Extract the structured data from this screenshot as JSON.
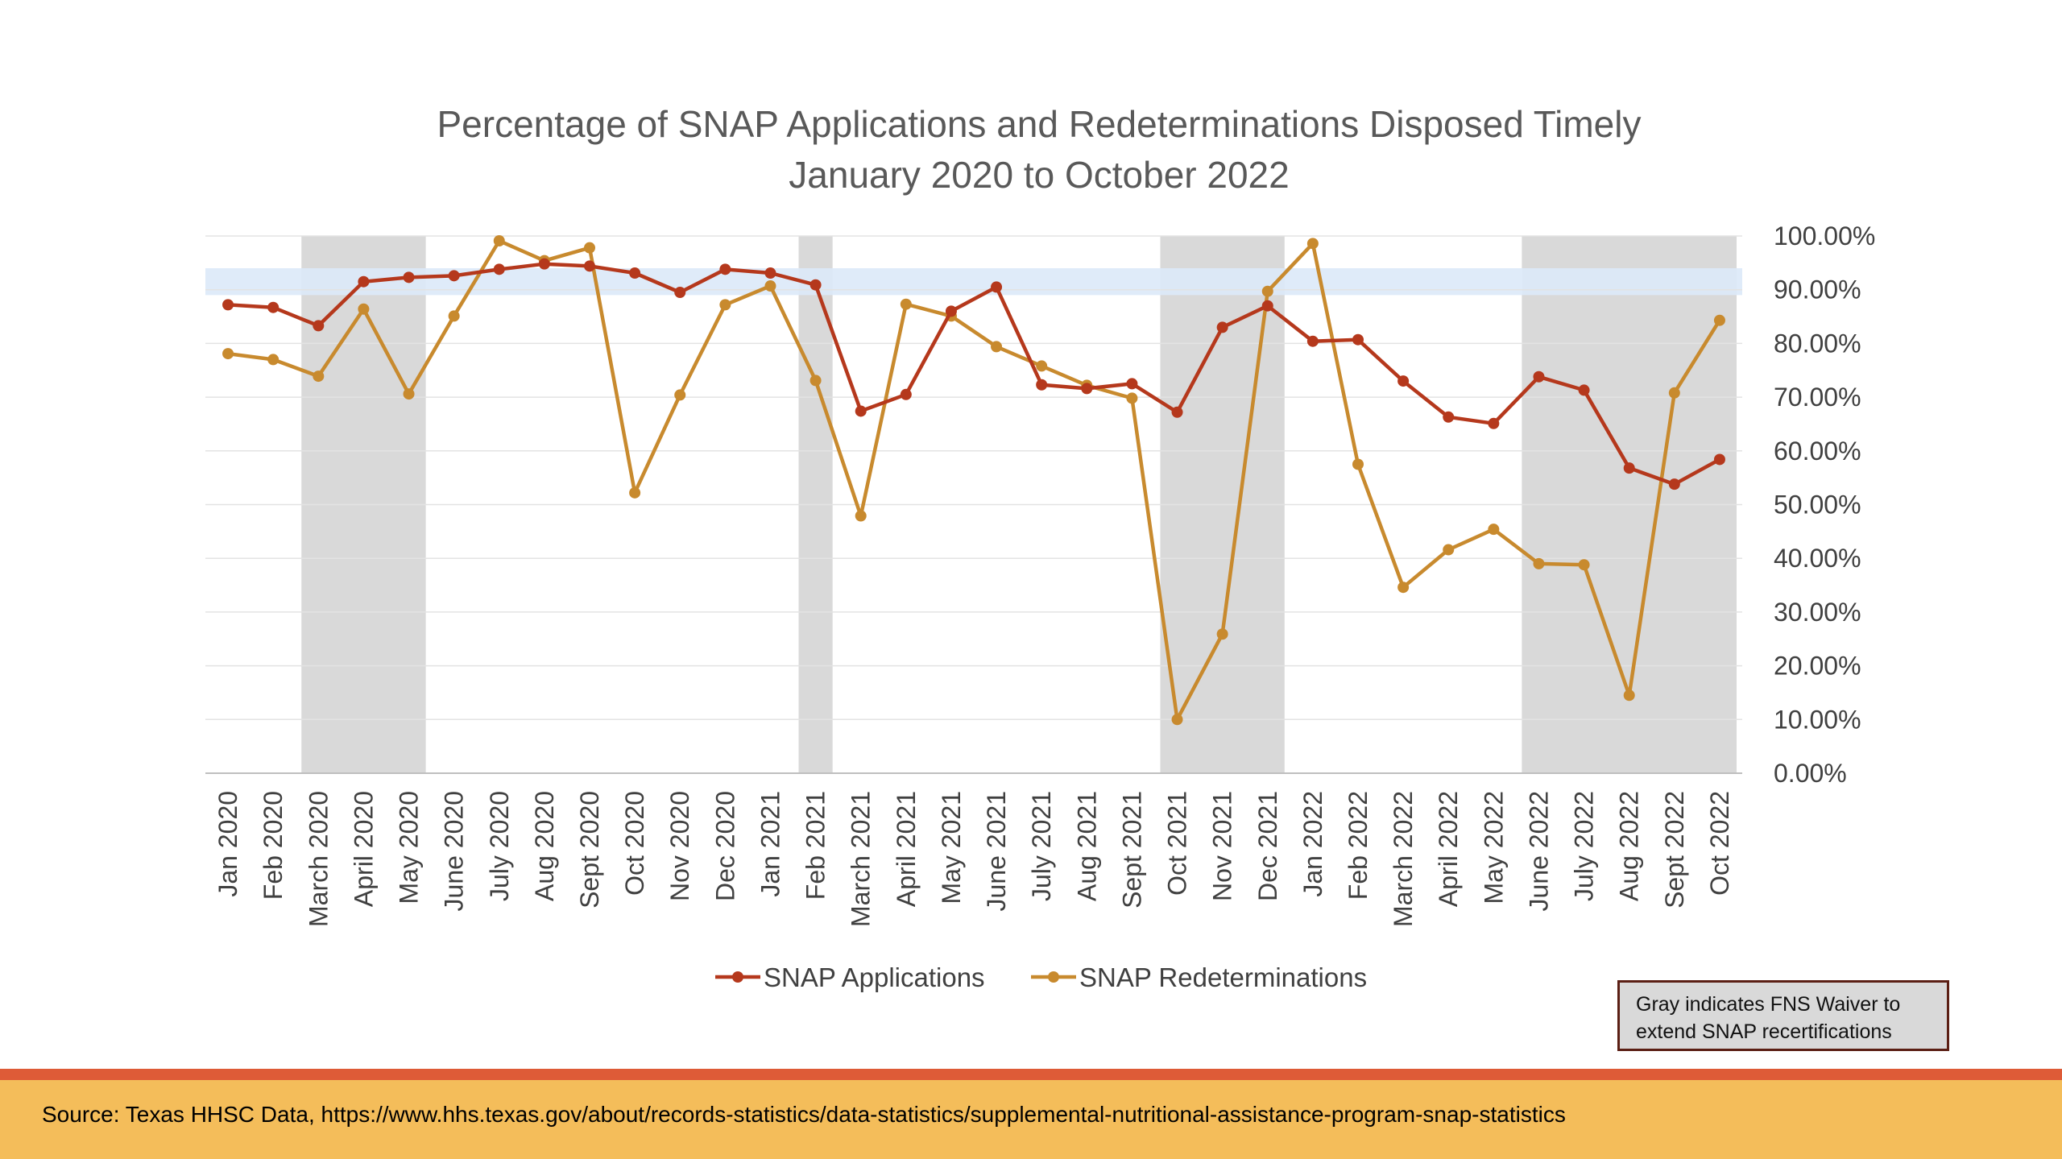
{
  "chart_data": {
    "type": "line",
    "title": "Percentage of SNAP Applications and Redeterminations Disposed Timely",
    "subtitle": "January 2020 to October 2022",
    "categories": [
      "Jan 2020",
      "Feb 2020",
      "March 2020",
      "April 2020",
      "May 2020",
      "June 2020",
      "July 2020",
      "Aug 2020",
      "Sept 2020",
      "Oct 2020",
      "Nov 2020",
      "Dec 2020",
      "Jan 2021",
      "Feb 2021",
      "March 2021",
      "April 2021",
      "May 2021",
      "June 2021",
      "July 2021",
      "Aug 2021",
      "Sept 2021",
      "Oct 2021",
      "Nov 2021",
      "Dec 2021",
      "Jan 2022",
      "Feb 2022",
      "March 2022",
      "April 2022",
      "May 2022",
      "June 2022",
      "July 2022",
      "Aug 2022",
      "Sept 2022",
      "Oct 2022"
    ],
    "series": [
      {
        "name": "SNAP Applications",
        "color": "#b5381c",
        "values": [
          87.2,
          86.7,
          83.3,
          91.5,
          92.3,
          92.6,
          93.8,
          94.8,
          94.4,
          93.1,
          89.5,
          93.8,
          93.1,
          90.9,
          67.4,
          70.5,
          86.0,
          90.5,
          72.3,
          71.6,
          72.5,
          67.2,
          83.0,
          87.0,
          80.4,
          80.7,
          73.0,
          66.3,
          65.1,
          73.8,
          71.3,
          56.8,
          53.8,
          58.4
        ]
      },
      {
        "name": "SNAP Redeterminations",
        "color": "#c88a2e",
        "values": [
          78.1,
          77.0,
          73.9,
          86.4,
          70.6,
          85.1,
          99.1,
          95.4,
          97.8,
          52.2,
          70.4,
          87.2,
          90.7,
          73.1,
          47.9,
          87.3,
          85.1,
          79.4,
          75.8,
          72.2,
          69.8,
          10.0,
          25.9,
          89.7,
          98.6,
          57.5,
          34.6,
          41.6,
          45.4,
          39.0,
          38.8,
          14.5,
          70.8,
          84.3
        ]
      }
    ],
    "y_axis": {
      "ticks": [
        "100.00%",
        "90.00%",
        "80.00%",
        "70.00%",
        "60.00%",
        "50.00%",
        "40.00%",
        "30.00%",
        "20.00%",
        "10.00%",
        "0.00%"
      ],
      "ylim": [
        0,
        100
      ],
      "position": "right"
    },
    "target_band": {
      "color": "#dce9f8",
      "range": [
        89,
        94
      ]
    },
    "waiver_shading": {
      "color": "#d9d9d9",
      "periods": [
        [
          "March 2020",
          "May 2020"
        ],
        [
          "Feb 2021",
          "Feb 2021"
        ],
        [
          "Oct 2021",
          "Dec 2021"
        ],
        [
          "June 2022",
          "Oct 2022"
        ]
      ]
    },
    "grid": true,
    "legend_position": "bottom"
  },
  "note": {
    "line1": "Gray indicates FNS Waiver to",
    "line2": "extend SNAP recertifications"
  },
  "footer": {
    "source": "Source: Texas HHSC Data, https://www.hhs.texas.gov/about/records-statistics/data-statistics/supplemental-nutritional-assistance-program-snap-statistics"
  },
  "colors": {
    "footer_band": "#f4bd5a",
    "footer_stripe": "#de5b37"
  }
}
